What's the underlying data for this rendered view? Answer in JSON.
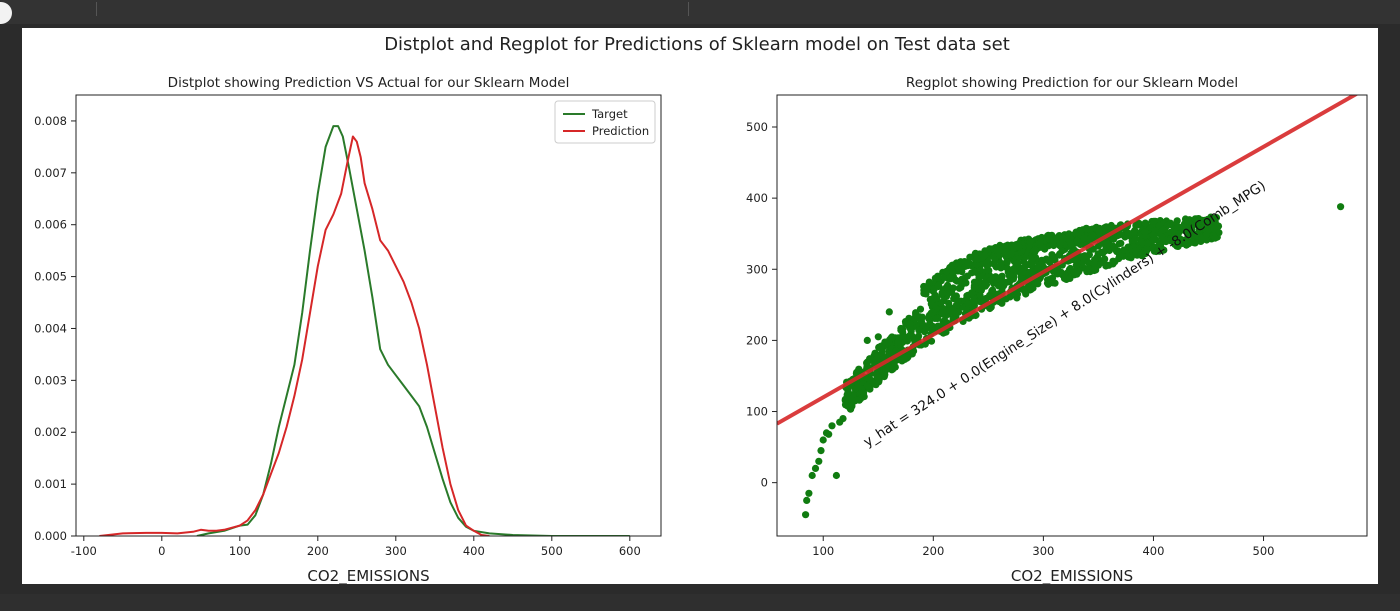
{
  "figure": {
    "suptitle": "Distplot and Regplot for Predictions of Sklearn model on Test data set"
  },
  "chart_data": [
    {
      "type": "line",
      "title": "Distplot showing Prediction VS Actual for our Sklearn Model",
      "xlabel": "CO2_EMISSIONS",
      "ylabel": "",
      "xlim": [
        -110,
        640
      ],
      "ylim": [
        0,
        0.0085
      ],
      "xticks": [
        -100,
        0,
        100,
        200,
        300,
        400,
        500,
        600
      ],
      "yticks": [
        0.0,
        0.001,
        0.002,
        0.003,
        0.004,
        0.005,
        0.006,
        0.007,
        0.008
      ],
      "ytick_labels": [
        "0.000",
        "0.001",
        "0.002",
        "0.003",
        "0.004",
        "0.005",
        "0.006",
        "0.007",
        "0.008"
      ],
      "grid": false,
      "legend": "top-right",
      "series": [
        {
          "name": "Target",
          "color": "#2a7a2a",
          "x": [
            45,
            60,
            80,
            100,
            110,
            120,
            130,
            140,
            150,
            160,
            170,
            180,
            190,
            200,
            210,
            220,
            226,
            232,
            240,
            250,
            260,
            270,
            280,
            290,
            300,
            310,
            320,
            330,
            340,
            350,
            360,
            370,
            380,
            390,
            400,
            420,
            450,
            500,
            550,
            600
          ],
          "values": [
            0.0,
            5e-05,
            0.0001,
            0.0002,
            0.00022,
            0.0004,
            0.0008,
            0.0014,
            0.0021,
            0.0027,
            0.0033,
            0.0043,
            0.0055,
            0.0066,
            0.0075,
            0.0079,
            0.0079,
            0.0077,
            0.0071,
            0.0063,
            0.0055,
            0.0046,
            0.0036,
            0.0033,
            0.0031,
            0.0029,
            0.0027,
            0.0025,
            0.0021,
            0.0016,
            0.0011,
            0.00065,
            0.00035,
            0.00018,
            0.0001,
            5e-05,
            2e-05,
            0.0,
            0.0,
            0.0
          ]
        },
        {
          "name": "Prediction",
          "color": "#d62728",
          "x": [
            -80,
            -50,
            -20,
            0,
            20,
            40,
            50,
            60,
            70,
            80,
            90,
            100,
            110,
            120,
            130,
            140,
            150,
            160,
            170,
            180,
            190,
            200,
            210,
            220,
            230,
            238,
            245,
            250,
            255,
            260,
            270,
            280,
            290,
            300,
            310,
            320,
            330,
            340,
            350,
            360,
            370,
            380,
            390,
            400,
            410,
            420
          ],
          "values": [
            0.0,
            5e-05,
            6e-05,
            6e-05,
            5e-05,
            8e-05,
            0.00012,
            0.0001,
            0.0001,
            0.00012,
            0.00016,
            0.0002,
            0.0003,
            0.0005,
            0.0008,
            0.0012,
            0.0016,
            0.0021,
            0.0027,
            0.0034,
            0.0043,
            0.0052,
            0.0059,
            0.0062,
            0.0066,
            0.0072,
            0.0077,
            0.0076,
            0.0073,
            0.0068,
            0.0063,
            0.0057,
            0.0055,
            0.0052,
            0.0049,
            0.0045,
            0.004,
            0.0033,
            0.0025,
            0.0017,
            0.001,
            0.0005,
            0.0002,
            0.0001,
            2e-05,
            0.0
          ]
        }
      ]
    },
    {
      "type": "scatter",
      "title": "Regplot showing Prediction for our Sklearn Model",
      "xlabel": "CO2_EMISSIONS",
      "ylabel": "",
      "xlim": [
        58,
        594
      ],
      "ylim": [
        -75,
        545
      ],
      "xticks": [
        100,
        200,
        300,
        400,
        500
      ],
      "yticks": [
        0,
        100,
        200,
        300,
        400,
        500
      ],
      "grid": false,
      "point_color": "#107c10",
      "line_color": "#d62728",
      "regression_line": {
        "x": [
          58,
          594
        ],
        "y": [
          83,
          555
        ]
      },
      "annotation": {
        "text": "y_hat = 324.0 + 0.0(Engine_Size) + 8.0(Cylinders) + -8.0(Comb_MPG)",
        "x": 140,
        "y": 50,
        "rotation_deg": -33
      },
      "outlier_points": {
        "x": [
          84,
          85,
          87,
          90,
          93,
          96,
          98,
          100,
          103,
          105,
          108,
          112,
          115,
          118,
          140,
          150,
          160,
          570
        ],
        "y": [
          -45,
          -25,
          -15,
          10,
          20,
          30,
          45,
          60,
          70,
          68,
          80,
          10,
          85,
          90,
          200,
          205,
          240,
          388
        ]
      },
      "band_upper": {
        "x": [
          120,
          140,
          160,
          180,
          200,
          220,
          240,
          260,
          280,
          300,
          320,
          340,
          360,
          380,
          400,
          420,
          440,
          460
        ],
        "y": [
          140,
          175,
          205,
          235,
          265,
          285,
          305,
          320,
          335,
          345,
          350,
          358,
          362,
          365,
          368,
          370,
          372,
          375
        ]
      },
      "band_lower": {
        "x": [
          120,
          140,
          160,
          180,
          200,
          220,
          240,
          260,
          280,
          300,
          320,
          340,
          360,
          380,
          400,
          420,
          440,
          460
        ],
        "y": [
          95,
          125,
          155,
          180,
          200,
          220,
          235,
          250,
          262,
          275,
          285,
          295,
          305,
          315,
          322,
          330,
          338,
          345
        ]
      },
      "upper_cluster": {
        "x": [
          190,
          200,
          210,
          220,
          240,
          260,
          280,
          300,
          320,
          340,
          360
        ],
        "y": [
          268,
          278,
          290,
          300,
          315,
          325,
          332,
          338,
          342,
          348,
          352
        ]
      }
    }
  ]
}
